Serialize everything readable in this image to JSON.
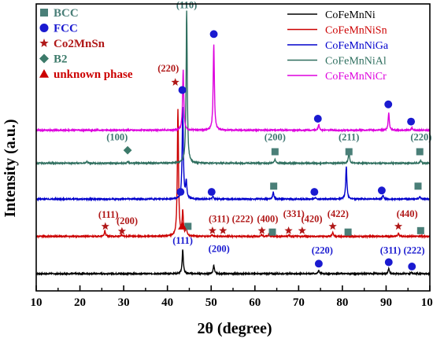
{
  "chart_data": {
    "type": "line",
    "xlabel": "2θ  (degree)",
    "ylabel": "Intensity (a.u.)",
    "xlim": [
      10,
      100
    ],
    "xticks": [
      10,
      20,
      30,
      40,
      50,
      60,
      70,
      80,
      90,
      100
    ],
    "y_tick_labels": false,
    "legend": {
      "placement": "top-right",
      "entries": [
        {
          "name": "CoFeMnNi",
          "color": "#000000"
        },
        {
          "name": "CoFeMnNiSn",
          "color": "#cc0000"
        },
        {
          "name": "CoFeMnNiGa",
          "color": "#0000cc"
        },
        {
          "name": "CoFeMnNiAl",
          "color": "#2f6f5f"
        },
        {
          "name": "CoFeMnNiCr",
          "color": "#dd00dd"
        }
      ]
    },
    "phase_legend": [
      {
        "symbol": "square",
        "label": "BCC",
        "color": "#4a7f78"
      },
      {
        "symbol": "circle",
        "label": "FCC",
        "color": "#1a1ad0"
      },
      {
        "symbol": "star",
        "label": "Co2MnSn",
        "color": "#b01818"
      },
      {
        "symbol": "diamond",
        "label": "B2",
        "color": "#3c7a6a"
      },
      {
        "symbol": "triangle",
        "label": "unknown phase",
        "color": "#cc0000"
      }
    ],
    "series": [
      {
        "name": "CoFeMnNi",
        "color": "#000000",
        "baseline": 0.06,
        "peaks": [
          {
            "x": 43.5,
            "h": 0.085
          },
          {
            "x": 50.6,
            "h": 0.03
          },
          {
            "x": 74.6,
            "h": 0.012
          },
          {
            "x": 90.6,
            "h": 0.017
          },
          {
            "x": 95.8,
            "h": 0.005
          }
        ]
      },
      {
        "name": "CoFeMnNiSn",
        "color": "#cc0000",
        "baseline": 0.19,
        "peaks": [
          {
            "x": 25.7,
            "h": 0.02
          },
          {
            "x": 29.5,
            "h": 0.006
          },
          {
            "x": 42.4,
            "h": 0.44
          },
          {
            "x": 43.5,
            "h": 0.085
          },
          {
            "x": 44.3,
            "h": 0.03
          },
          {
            "x": 50.2,
            "h": 0.005
          },
          {
            "x": 61.5,
            "h": 0.006
          },
          {
            "x": 63.2,
            "h": 0.006
          },
          {
            "x": 67.8,
            "h": 0.004
          },
          {
            "x": 77.8,
            "h": 0.015
          },
          {
            "x": 92.8,
            "h": 0.012
          }
        ]
      },
      {
        "name": "CoFeMnNiGa",
        "color": "#0000cc",
        "baseline": 0.32,
        "peaks": [
          {
            "x": 43.5,
            "h": 0.32
          },
          {
            "x": 44.3,
            "h": 0.06
          },
          {
            "x": 50.4,
            "h": 0.01
          },
          {
            "x": 64.2,
            "h": 0.025
          },
          {
            "x": 73.8,
            "h": 0.006
          },
          {
            "x": 80.9,
            "h": 0.115
          },
          {
            "x": 89.3,
            "h": 0.014
          },
          {
            "x": 97.7,
            "h": 0.01
          }
        ]
      },
      {
        "name": "CoFeMnNiAl",
        "color": "#2f6f5f",
        "baseline": 0.445,
        "peaks": [
          {
            "x": 21.6,
            "h": 0.006
          },
          {
            "x": 30.9,
            "h": 0.006
          },
          {
            "x": 44.4,
            "h": 0.53
          },
          {
            "x": 64.6,
            "h": 0.015
          },
          {
            "x": 81.5,
            "h": 0.04
          },
          {
            "x": 97.9,
            "h": 0.01
          }
        ]
      },
      {
        "name": "CoFeMnNiCr",
        "color": "#dd00dd",
        "baseline": 0.56,
        "peaks": [
          {
            "x": 43.6,
            "h": 0.21
          },
          {
            "x": 50.6,
            "h": 0.3
          },
          {
            "x": 74.6,
            "h": 0.02
          },
          {
            "x": 90.6,
            "h": 0.06
          },
          {
            "x": 95.9,
            "h": 0.008
          }
        ]
      }
    ],
    "annotations": [
      {
        "kind": "text",
        "text": "(110)",
        "x": 44.4,
        "y": 0.985,
        "color": "#3d7570"
      },
      {
        "kind": "text",
        "text": "(220)",
        "x": 40.2,
        "y": 0.765,
        "color": "#b01818"
      },
      {
        "kind": "text",
        "text": "(100)",
        "x": 28.5,
        "y": 0.525,
        "color": "#3d7570"
      },
      {
        "kind": "text",
        "text": "(200)",
        "x": 64.6,
        "y": 0.525,
        "color": "#3d7570"
      },
      {
        "kind": "text",
        "text": "(211)",
        "x": 81.5,
        "y": 0.525,
        "color": "#3d7570"
      },
      {
        "kind": "text",
        "text": "(220)",
        "x": 98.0,
        "y": 0.525,
        "color": "#3d7570"
      },
      {
        "kind": "text",
        "text": "(111)",
        "x": 26.5,
        "y": 0.255,
        "color": "#b01818"
      },
      {
        "kind": "text",
        "text": "(200)",
        "x": 30.8,
        "y": 0.233,
        "color": "#b01818"
      },
      {
        "kind": "text",
        "text": "(311)",
        "x": 51.8,
        "y": 0.24,
        "color": "#b01818"
      },
      {
        "kind": "text",
        "text": "(222)",
        "x": 57.2,
        "y": 0.24,
        "color": "#b01818"
      },
      {
        "kind": "text",
        "text": "(400)",
        "x": 62.9,
        "y": 0.24,
        "color": "#b01818"
      },
      {
        "kind": "text",
        "text": "(331)",
        "x": 68.9,
        "y": 0.258,
        "color": "#b01818"
      },
      {
        "kind": "text",
        "text": "(420)",
        "x": 73.0,
        "y": 0.24,
        "color": "#b01818"
      },
      {
        "kind": "text",
        "text": "(422)",
        "x": 79.0,
        "y": 0.258,
        "color": "#b01818"
      },
      {
        "kind": "text",
        "text": "(440)",
        "x": 94.8,
        "y": 0.258,
        "color": "#b01818"
      },
      {
        "kind": "text",
        "text": "(111)",
        "x": 43.5,
        "y": 0.165,
        "color": "#1a1ad0"
      },
      {
        "kind": "text",
        "text": "(200)",
        "x": 51.8,
        "y": 0.135,
        "color": "#1a1ad0"
      },
      {
        "kind": "text",
        "text": "(220)",
        "x": 75.4,
        "y": 0.13,
        "color": "#1a1ad0"
      },
      {
        "kind": "text",
        "text": "(311)",
        "x": 91.0,
        "y": 0.13,
        "color": "#1a1ad0"
      },
      {
        "kind": "text",
        "text": "(222)",
        "x": 96.4,
        "y": 0.13,
        "color": "#1a1ad0"
      },
      {
        "kind": "marker",
        "symbol": "circle",
        "x": 50.6,
        "y": 0.895,
        "color": "#1a1ad0"
      },
      {
        "kind": "marker",
        "symbol": "circle",
        "x": 43.4,
        "y": 0.7,
        "color": "#1a1ad0"
      },
      {
        "kind": "marker",
        "symbol": "circle",
        "x": 74.4,
        "y": 0.6,
        "color": "#1a1ad0"
      },
      {
        "kind": "marker",
        "symbol": "circle",
        "x": 90.5,
        "y": 0.65,
        "color": "#1a1ad0"
      },
      {
        "kind": "marker",
        "symbol": "circle",
        "x": 95.7,
        "y": 0.59,
        "color": "#1a1ad0"
      },
      {
        "kind": "marker",
        "symbol": "circle",
        "x": 50.1,
        "y": 0.345,
        "color": "#1a1ad0"
      },
      {
        "kind": "marker",
        "symbol": "circle",
        "x": 73.6,
        "y": 0.345,
        "color": "#1a1ad0"
      },
      {
        "kind": "marker",
        "symbol": "circle",
        "x": 89.0,
        "y": 0.35,
        "color": "#1a1ad0"
      },
      {
        "kind": "marker",
        "symbol": "circle",
        "x": 43.0,
        "y": 0.345,
        "color": "#1a1ad0"
      },
      {
        "kind": "marker",
        "symbol": "circle",
        "x": 74.6,
        "y": 0.095,
        "color": "#1a1ad0"
      },
      {
        "kind": "marker",
        "symbol": "circle",
        "x": 90.6,
        "y": 0.1,
        "color": "#1a1ad0"
      },
      {
        "kind": "marker",
        "symbol": "circle",
        "x": 95.9,
        "y": 0.085,
        "color": "#1a1ad0"
      },
      {
        "kind": "marker",
        "symbol": "square",
        "x": 64.3,
        "y": 0.365,
        "color": "#4a7f78"
      },
      {
        "kind": "marker",
        "symbol": "square",
        "x": 97.3,
        "y": 0.365,
        "color": "#4a7f78"
      },
      {
        "kind": "marker",
        "symbol": "square",
        "x": 64.6,
        "y": 0.485,
        "color": "#4a7f78"
      },
      {
        "kind": "marker",
        "symbol": "square",
        "x": 81.5,
        "y": 0.485,
        "color": "#4a7f78"
      },
      {
        "kind": "marker",
        "symbol": "square",
        "x": 97.7,
        "y": 0.485,
        "color": "#4a7f78"
      },
      {
        "kind": "marker",
        "symbol": "square",
        "x": 44.7,
        "y": 0.225,
        "color": "#4a7f78"
      },
      {
        "kind": "marker",
        "symbol": "square",
        "x": 64.0,
        "y": 0.205,
        "color": "#4a7f78"
      },
      {
        "kind": "marker",
        "symbol": "square",
        "x": 81.3,
        "y": 0.205,
        "color": "#4a7f78"
      },
      {
        "kind": "marker",
        "symbol": "square",
        "x": 97.9,
        "y": 0.21,
        "color": "#4a7f78"
      },
      {
        "kind": "marker",
        "symbol": "diamond",
        "x": 30.9,
        "y": 0.49,
        "color": "#3c7a6a"
      },
      {
        "kind": "marker",
        "symbol": "triangle",
        "x": 43.4,
        "y": 0.226,
        "color": "#cc0000"
      },
      {
        "kind": "marker",
        "symbol": "star",
        "x": 41.8,
        "y": 0.727,
        "color": "#b01818"
      },
      {
        "kind": "marker",
        "symbol": "star",
        "x": 25.8,
        "y": 0.225,
        "color": "#b01818"
      },
      {
        "kind": "marker",
        "symbol": "star",
        "x": 29.6,
        "y": 0.208,
        "color": "#b01818"
      },
      {
        "kind": "marker",
        "symbol": "star",
        "x": 50.3,
        "y": 0.21,
        "color": "#b01818"
      },
      {
        "kind": "marker",
        "symbol": "star",
        "x": 52.7,
        "y": 0.21,
        "color": "#b01818"
      },
      {
        "kind": "marker",
        "symbol": "star",
        "x": 61.6,
        "y": 0.21,
        "color": "#b01818"
      },
      {
        "kind": "marker",
        "symbol": "star",
        "x": 67.7,
        "y": 0.21,
        "color": "#b01818"
      },
      {
        "kind": "marker",
        "symbol": "star",
        "x": 70.8,
        "y": 0.21,
        "color": "#b01818"
      },
      {
        "kind": "marker",
        "symbol": "star",
        "x": 77.8,
        "y": 0.225,
        "color": "#b01818"
      },
      {
        "kind": "marker",
        "symbol": "star",
        "x": 92.8,
        "y": 0.225,
        "color": "#b01818"
      }
    ]
  }
}
